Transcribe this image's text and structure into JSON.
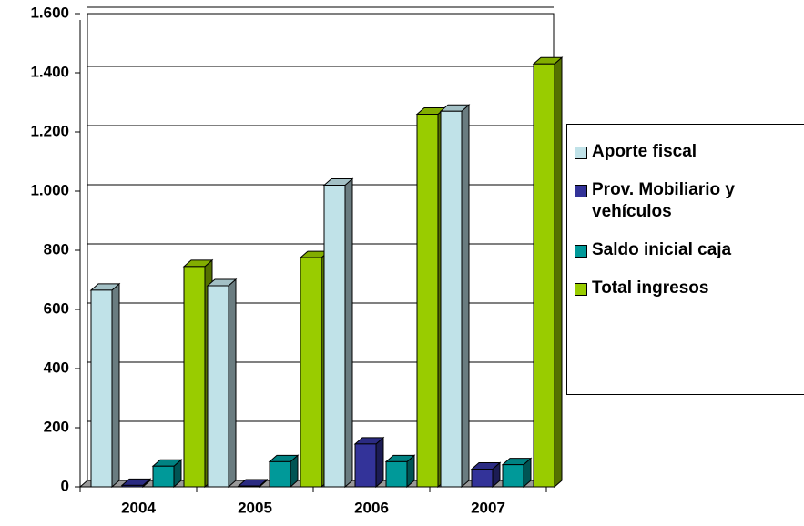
{
  "chart_data": {
    "type": "bar3d",
    "categories": [
      "2004",
      "2005",
      "2006",
      "2007"
    ],
    "series": [
      {
        "name": "Aporte fiscal",
        "color": "#c0e2e8",
        "values": [
          665,
          680,
          1020,
          1270
        ]
      },
      {
        "name": "Prov. Mobiliario y vehículos",
        "color": "#333399",
        "values": [
          5,
          3,
          145,
          60
        ]
      },
      {
        "name": "Saldo inicial caja",
        "color": "#009999",
        "values": [
          70,
          85,
          85,
          75
        ]
      },
      {
        "name": "Total ingresos",
        "color": "#99cc00",
        "values": [
          745,
          775,
          1260,
          1430
        ]
      }
    ],
    "ylim": [
      0,
      1600
    ],
    "yticks": [
      0,
      200,
      400,
      600,
      800,
      {
        "value": 1000,
        "label": "1.000"
      },
      {
        "value": 1200,
        "label": "1.200"
      },
      {
        "value": 1400,
        "label": "1.400"
      },
      {
        "value": 1600,
        "label": "1.600"
      }
    ],
    "grid": true
  }
}
